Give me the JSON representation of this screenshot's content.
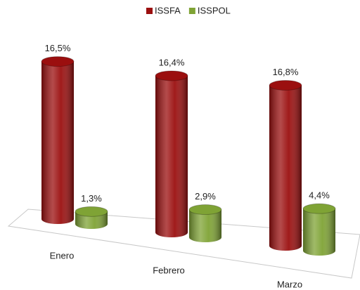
{
  "chart_data": {
    "type": "bar3d",
    "categories": [
      "Enero",
      "Febrero",
      "Marzo"
    ],
    "series": [
      {
        "name": "ISSFA",
        "color": "#9b0f0f",
        "values": [
          16.5,
          16.4,
          16.8
        ],
        "value_labels": [
          "16,5%",
          "16,4%",
          "16,8%"
        ]
      },
      {
        "name": "ISSPOL",
        "color": "#7fa335",
        "values": [
          1.3,
          2.9,
          4.4
        ],
        "value_labels": [
          "1,3%",
          "2,9%",
          "4,4%"
        ]
      }
    ],
    "legend": "top"
  }
}
